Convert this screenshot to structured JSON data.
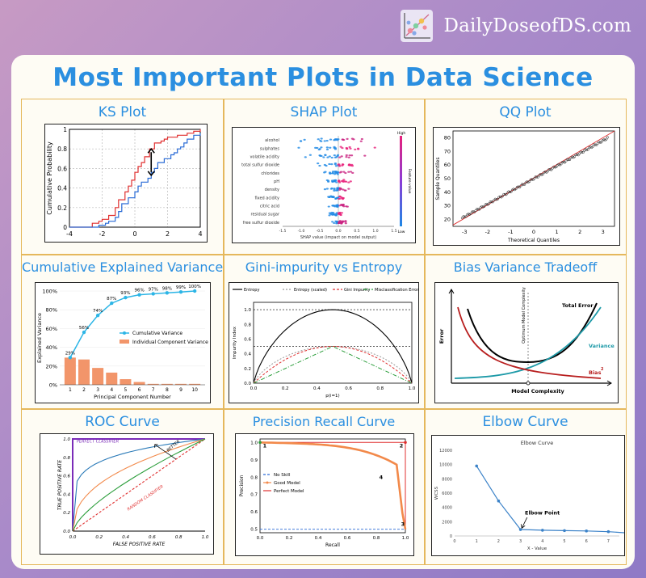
{
  "brand": {
    "name": "DailyDoseofDS.com"
  },
  "title": "Most Important Plots in Data Science",
  "panels": [
    {
      "id": "ks",
      "title": "KS Plot"
    },
    {
      "id": "shap",
      "title": "SHAP Plot"
    },
    {
      "id": "qq",
      "title": "QQ Plot"
    },
    {
      "id": "cev",
      "title": "Cumulative Explained Variance"
    },
    {
      "id": "gini",
      "title": "Gini-impurity vs Entropy"
    },
    {
      "id": "bv",
      "title": "Bias Variance Tradeoff"
    },
    {
      "id": "roc",
      "title": "ROC Curve"
    },
    {
      "id": "pr",
      "title": "Precision Recall Curve"
    },
    {
      "id": "elbow",
      "title": "Elbow Curve"
    }
  ],
  "colors": {
    "title_blue": "#2b8fe0",
    "border_gold": "#e5b85c",
    "line_orange": "#f2894a",
    "line_blue": "#2a6bd6",
    "line_red": "#e03030"
  },
  "chart_data": [
    {
      "type": "line",
      "panel": "ks",
      "ylabel": "Cumulative Probability",
      "xticks": [
        "-4",
        "-2",
        "0",
        "2",
        "4"
      ],
      "yticks": [
        "0",
        "0.2",
        "0.4",
        "0.6",
        "0.8",
        "1"
      ],
      "xlim": [
        -4,
        4
      ],
      "ylim": [
        0,
        1
      ],
      "grid": true,
      "series": [
        {
          "color": "#e03030",
          "x": [
            -4,
            -2.8,
            -2.6,
            -2.2,
            -2.0,
            -1.6,
            -1.2,
            -1.0,
            -0.6,
            -0.4,
            -0.2,
            0.0,
            0.2,
            0.4,
            0.6,
            0.9,
            1.2,
            1.4,
            1.6,
            1.8,
            2.0,
            2.2,
            2.4,
            2.6,
            2.8,
            3.2,
            3.6,
            4
          ],
          "y": [
            0,
            0,
            0.04,
            0.06,
            0.08,
            0.12,
            0.2,
            0.28,
            0.36,
            0.42,
            0.48,
            0.56,
            0.62,
            0.66,
            0.72,
            0.8,
            0.86,
            0.86,
            0.88,
            0.9,
            0.92,
            0.92,
            0.92,
            0.94,
            0.94,
            0.96,
            0.98,
            1.0
          ]
        },
        {
          "color": "#2a6bd6",
          "x": [
            -4,
            -2.6,
            -2.2,
            -1.8,
            -1.6,
            -1.2,
            -1.0,
            -0.8,
            -0.4,
            0.0,
            0.2,
            0.4,
            0.8,
            1.0,
            1.2,
            1.4,
            1.8,
            2.2,
            2.4,
            2.6,
            2.8,
            3.0,
            3.2,
            3.6,
            4
          ],
          "y": [
            0,
            0,
            0.02,
            0.04,
            0.06,
            0.1,
            0.16,
            0.24,
            0.3,
            0.36,
            0.42,
            0.46,
            0.5,
            0.56,
            0.6,
            0.66,
            0.7,
            0.74,
            0.76,
            0.8,
            0.82,
            0.86,
            0.9,
            0.94,
            0.96
          ]
        }
      ],
      "annotation": {
        "x": 1.0,
        "y_from": 0.53,
        "y_to": 0.8
      }
    },
    {
      "type": "scatter",
      "panel": "shap",
      "xlabel": "SHAP value (impact on model output)",
      "features": [
        "alcohol",
        "sulphates",
        "volatile acidity",
        "total sulfur dioxide",
        "chlorides",
        "pH",
        "density",
        "fixed acidity",
        "citric acid",
        "residual sugar",
        "free sulfur dioxide"
      ],
      "spread": [
        1.0,
        0.9,
        0.75,
        0.55,
        0.35,
        0.3,
        0.3,
        0.25,
        0.22,
        0.2,
        0.18
      ],
      "xticks": [
        "-1.5",
        "-1.0",
        "-0.5",
        "0.0",
        "0.5",
        "1.0",
        "1.5"
      ],
      "xlim": [
        -1.5,
        1.5
      ],
      "colorbar": {
        "label": "Feature value",
        "high": "High",
        "low": "Low"
      }
    },
    {
      "type": "scatter",
      "panel": "qq",
      "xlabel": "Theoretical Quantiles",
      "ylabel": "Sample Quantiles",
      "xticks": [
        "-3",
        "-2",
        "-1",
        "0",
        "1",
        "2",
        "3"
      ],
      "yticks": [
        "20",
        "30",
        "40",
        "50",
        "60",
        "70",
        "80"
      ],
      "xlim": [
        -3.5,
        3.5
      ],
      "ylim": [
        15,
        85
      ],
      "line": {
        "x": [
          -3.5,
          3.5
        ],
        "y": [
          16,
          85
        ]
      }
    },
    {
      "type": "bar",
      "panel": "cev",
      "categories": [
        "1",
        "2",
        "3",
        "4",
        "5",
        "6",
        "7",
        "8",
        "9",
        "10"
      ],
      "xlabel": "Principal Component Number",
      "ylabel": "Explained Variance",
      "series": [
        {
          "name": "Cumulative Variance",
          "values": [
            29,
            56,
            74,
            87,
            93,
            96,
            97,
            98,
            99,
            100
          ],
          "labels": [
            "29%",
            "56%",
            "74%",
            "87%",
            "93%",
            "96%",
            "97%",
            "98%",
            "99%",
            "100%"
          ]
        },
        {
          "name": "Individual Component Variance",
          "values": [
            29,
            27,
            18,
            13,
            6,
            3,
            1,
            1,
            1,
            1
          ]
        }
      ],
      "yticks": [
        "0%",
        "20%",
        "40%",
        "60%",
        "80%",
        "100%"
      ],
      "ylim": [
        0,
        100
      ]
    },
    {
      "type": "line",
      "panel": "gini",
      "xlabel": "p(i=1)",
      "ylabel": "Impurity Index",
      "xticks": [
        "0.0",
        "0.2",
        "0.4",
        "0.6",
        "0.8",
        "1.0"
      ],
      "yticks": [
        "0.0",
        "0.2",
        "0.4",
        "0.6",
        "0.8",
        "1.0"
      ],
      "xlim": [
        0,
        1
      ],
      "ylim": [
        0,
        1.1
      ],
      "series": [
        {
          "name": "Entropy",
          "color": "#000000"
        },
        {
          "name": "Entropy (scaled)",
          "color": "#999999"
        },
        {
          "name": "Gini Impurity",
          "color": "#e03030"
        },
        {
          "name": "Misclassification Error",
          "color": "#2a9d3a"
        }
      ]
    },
    {
      "type": "line",
      "panel": "bv",
      "xlabel": "Model Complexity",
      "ylabel": "Error",
      "series": [
        {
          "name": "Total Error",
          "color": "#000000"
        },
        {
          "name": "Variance",
          "color": "#1e9aa8"
        },
        {
          "name": "Bias",
          "color": "#b81e1e"
        }
      ],
      "vline_label": "Optimum Model Complexity"
    },
    {
      "type": "line",
      "panel": "roc",
      "xlabel": "FALSE POSITIVE RATE",
      "ylabel": "TRUE POSITIVE RATE",
      "xticks": [
        "0.0",
        "0.2",
        "0.4",
        "0.6",
        "0.8",
        "1.0"
      ],
      "yticks": [
        "0.0",
        "0.2",
        "0.4",
        "0.6",
        "0.8",
        "1.0"
      ],
      "annotations": [
        "PERFECT CLASSIFIER",
        "RANDOM CLASSIFIER",
        "BETTER"
      ]
    },
    {
      "type": "line",
      "panel": "pr",
      "xlabel": "Recall",
      "ylabel": "Precision",
      "xticks": [
        "0.0",
        "0.2",
        "0.4",
        "0.6",
        "0.8",
        "1.0"
      ],
      "yticks": [
        "0.5",
        "0.6",
        "0.7",
        "0.8",
        "0.9",
        "1.0"
      ],
      "xlim": [
        0,
        1
      ],
      "ylim": [
        0.48,
        1.02
      ],
      "series": [
        {
          "name": "No Skill",
          "color": "#2a6bd6"
        },
        {
          "name": "Good Model",
          "color": "#f2894a"
        },
        {
          "name": "Perfect Model",
          "color": "#e03030"
        }
      ],
      "points": [
        "1",
        "2",
        "3",
        "4"
      ]
    },
    {
      "type": "line",
      "panel": "elbow",
      "title": "Elbow Curve",
      "xlabel": "X - Value",
      "ylabel": "WCSS",
      "x": [
        1,
        2,
        3,
        4,
        5,
        6,
        7,
        8
      ],
      "y": [
        9800,
        4900,
        900,
        800,
        750,
        700,
        600,
        400
      ],
      "xticks": [
        "0",
        "1",
        "2",
        "3",
        "4",
        "5",
        "6",
        "7"
      ],
      "yticks": [
        "0",
        "2000",
        "4000",
        "6000",
        "8000",
        "10000",
        "12000"
      ],
      "xlim": [
        0,
        7.5
      ],
      "ylim": [
        0,
        12000
      ],
      "annotation": "Elbow Point"
    }
  ]
}
